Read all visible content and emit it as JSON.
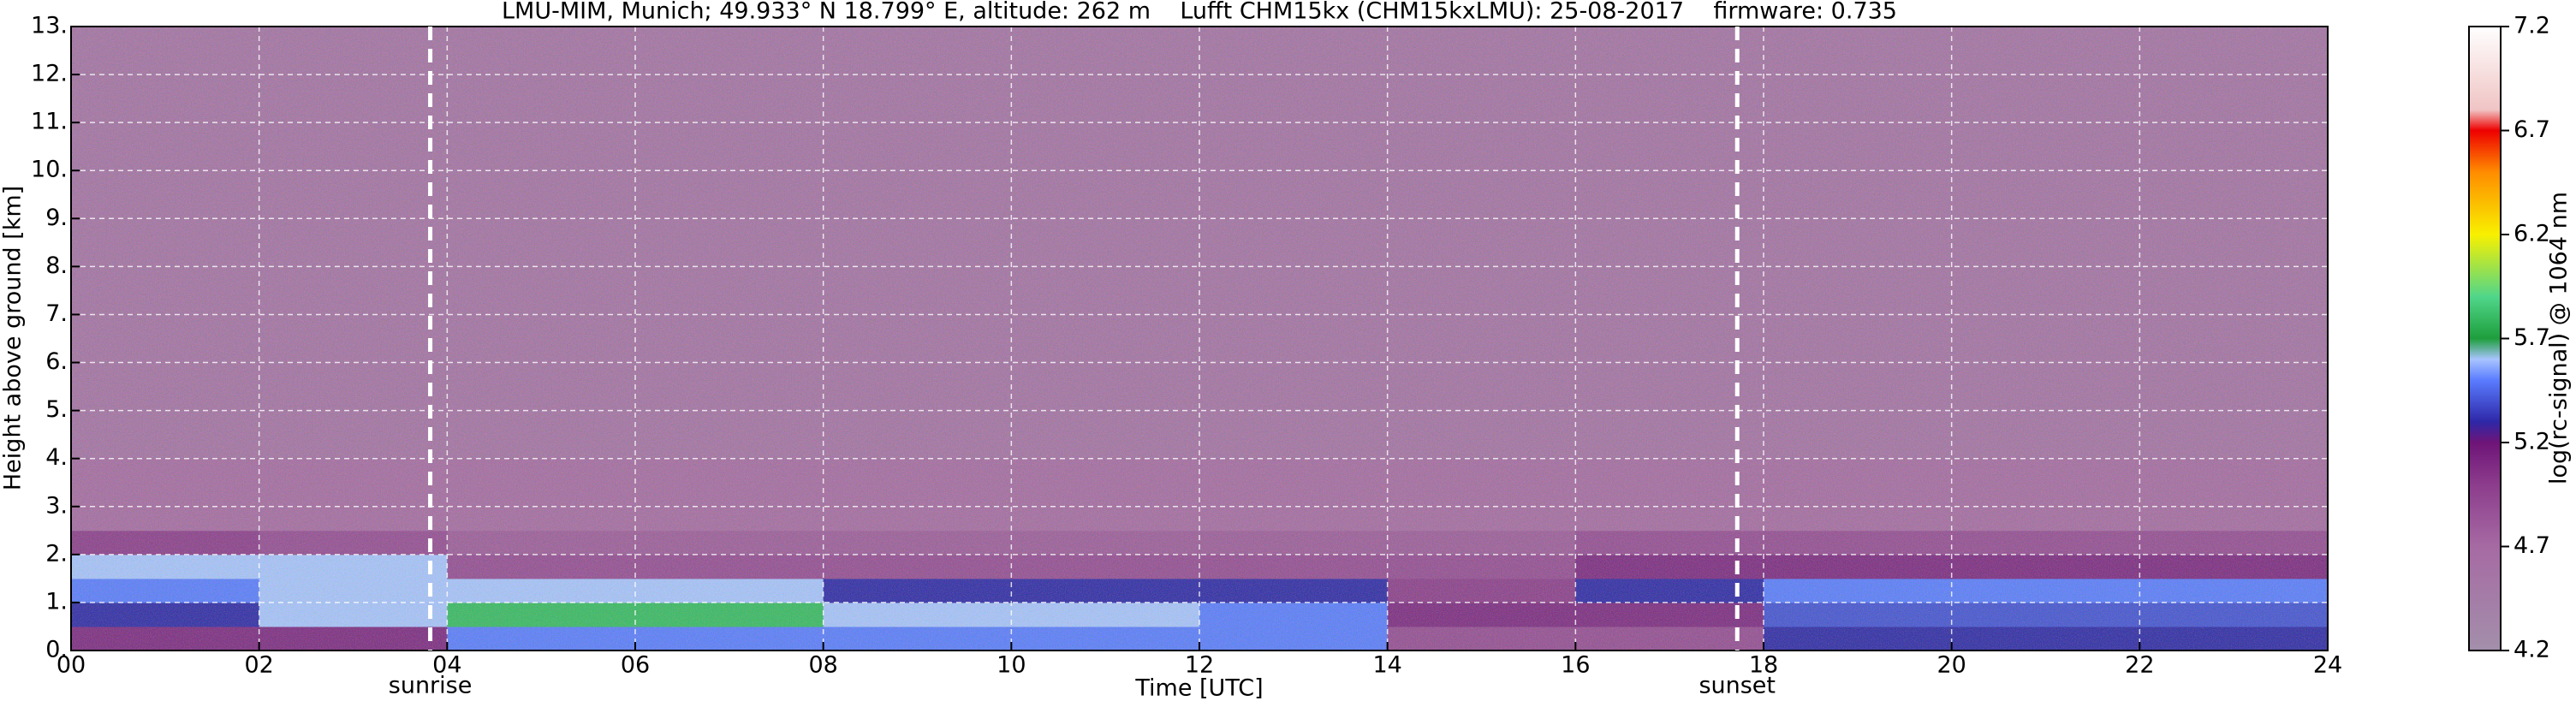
{
  "chart_data": {
    "type": "heatmap",
    "title": "LMU-MIM, Munich; 49.933° N 18.799° E, altitude: 262 m    Lufft CHM15kx (CHM15kxLMU): 25-08-2017    firmware: 0.735",
    "x_label": "Time [UTC]",
    "y_label": "Height above ground [km]",
    "colorbar_label": "log(rc-signal) @ 1064 nm",
    "xlim": [
      0,
      24
    ],
    "ylim": [
      0,
      13
    ],
    "xticks": [
      {
        "value": 0,
        "label": "00"
      },
      {
        "value": 2,
        "label": "02"
      },
      {
        "value": 4,
        "label": "04"
      },
      {
        "value": 6,
        "label": "06"
      },
      {
        "value": 8,
        "label": "08"
      },
      10,
      12,
      14,
      16,
      18,
      20,
      22,
      24
    ],
    "yticks": [
      {
        "value": 0,
        "label": "0."
      },
      {
        "value": 1,
        "label": "1."
      },
      {
        "value": 2,
        "label": "2."
      },
      {
        "value": 3,
        "label": "3."
      },
      {
        "value": 4,
        "label": "4."
      },
      {
        "value": 5,
        "label": "5."
      },
      {
        "value": 6,
        "label": "6."
      },
      {
        "value": 7,
        "label": "7."
      },
      {
        "value": 8,
        "label": "8."
      },
      {
        "value": 9,
        "label": "9."
      },
      {
        "value": 10,
        "label": "10."
      },
      {
        "value": 11,
        "label": "11."
      },
      {
        "value": 12,
        "label": "12."
      },
      {
        "value": 13,
        "label": "13."
      }
    ],
    "grid": true,
    "clim": [
      4.2,
      7.2
    ],
    "cticks": [
      4.2,
      4.7,
      5.2,
      5.7,
      6.2,
      6.7,
      7.2
    ],
    "colorscale": [
      [
        4.2,
        "#a38fab"
      ],
      [
        4.7,
        "#a66aa3"
      ],
      [
        5.0,
        "#8c3c8c"
      ],
      [
        5.2,
        "#6e1478"
      ],
      [
        5.3,
        "#2e28a8"
      ],
      [
        5.5,
        "#5a7cff"
      ],
      [
        5.6,
        "#a8c4ff"
      ],
      [
        5.7,
        "#1e9e3c"
      ],
      [
        5.9,
        "#50d68a"
      ],
      [
        6.2,
        "#f8f000"
      ],
      [
        6.5,
        "#ff8c00"
      ],
      [
        6.7,
        "#ee0000"
      ],
      [
        6.8,
        "#f0c4c4"
      ],
      [
        7.2,
        "#ffffff"
      ]
    ],
    "x_edges": [
      0,
      2,
      4,
      6,
      8,
      10,
      12,
      14,
      16,
      18,
      20,
      22,
      24
    ],
    "y_edges": [
      0,
      0.5,
      1,
      1.5,
      2,
      2.5,
      4,
      13
    ],
    "values": [
      [
        5.1,
        5.1,
        5.5,
        5.5,
        5.5,
        5.5,
        5.5,
        4.9,
        4.9,
        5.3,
        5.3,
        5.3
      ],
      [
        5.3,
        5.6,
        5.8,
        5.8,
        5.6,
        5.6,
        5.5,
        5.1,
        5.1,
        5.4,
        5.4,
        5.4
      ],
      [
        5.5,
        5.6,
        5.6,
        5.6,
        5.3,
        5.3,
        5.3,
        5.0,
        5.3,
        5.5,
        5.5,
        5.5
      ],
      [
        5.6,
        5.6,
        4.9,
        4.9,
        4.9,
        4.9,
        4.9,
        4.9,
        5.1,
        5.1,
        5.1,
        5.1
      ],
      [
        5.0,
        4.9,
        4.8,
        4.8,
        4.8,
        4.8,
        4.8,
        4.8,
        4.9,
        4.9,
        4.9,
        4.9
      ],
      [
        4.7,
        4.7,
        4.7,
        4.7,
        4.7,
        4.7,
        4.7,
        4.7,
        4.7,
        4.7,
        4.7,
        4.7
      ],
      [
        4.6,
        4.6,
        4.6,
        4.6,
        4.6,
        4.6,
        4.6,
        4.6,
        4.6,
        4.6,
        4.6,
        4.6
      ]
    ],
    "annotations": [
      {
        "text": "sunrise",
        "x": 3.82
      },
      {
        "text": "sunset",
        "x": 17.72
      }
    ]
  }
}
